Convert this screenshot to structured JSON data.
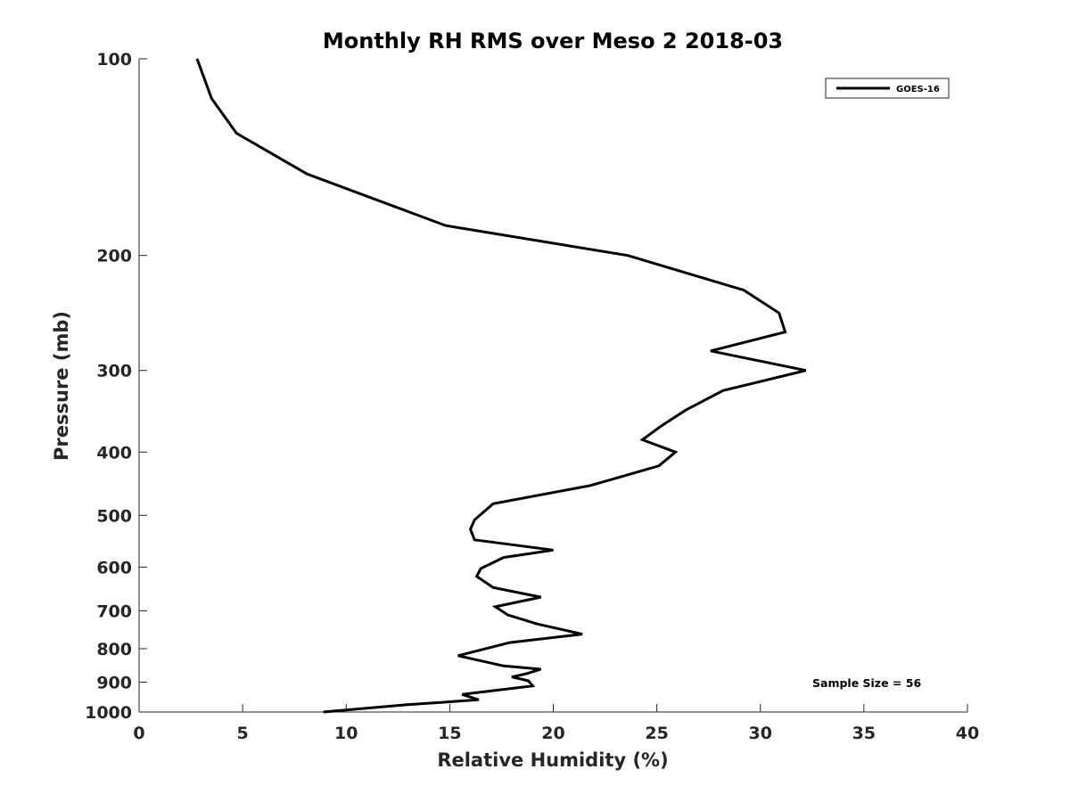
{
  "chart_data": {
    "type": "line",
    "title": "Monthly RH RMS over Meso 2  2018-03",
    "xlabel": "Relative Humidity (%)",
    "ylabel": "Pressure (mb)",
    "xlim": [
      0,
      40
    ],
    "ylim": [
      100,
      1000
    ],
    "y_scale": "log",
    "y_reversed": true,
    "xticks": [
      0,
      5,
      10,
      15,
      20,
      25,
      30,
      35,
      40
    ],
    "xtick_labels": [
      "0",
      "5",
      "10",
      "15",
      "20",
      "25",
      "30",
      "35",
      "40"
    ],
    "yticks": [
      100,
      200,
      300,
      400,
      500,
      600,
      700,
      800,
      900,
      1000
    ],
    "ytick_labels": [
      "100",
      "200",
      "300",
      "400",
      "500",
      "600",
      "700",
      "800",
      "900",
      "1000"
    ],
    "grid": false,
    "legend_position": "top-right",
    "annotation": "Sample Size = 56",
    "series": [
      {
        "name": "GOES-16",
        "color": "#000000",
        "x": [
          2.8,
          3.5,
          4.7,
          8.1,
          14.8,
          23.6,
          29.2,
          30.9,
          31.2,
          27.6,
          32.2,
          28.2,
          26.4,
          25.2,
          24.3,
          25.9,
          25.1,
          21.8,
          17.1,
          16.2,
          16.0,
          16.2,
          20.0,
          17.6,
          16.5,
          16.3,
          17.1,
          19.4,
          17.2,
          17.8,
          19.2,
          21.4,
          17.9,
          15.4,
          17.6,
          19.4,
          18.7,
          18.0,
          18.8,
          19.0,
          15.6,
          16.4,
          12.9,
          8.9
        ],
        "y": [
          100,
          115,
          130,
          150,
          180,
          200,
          226,
          245,
          262,
          280,
          300,
          322,
          345,
          365,
          383,
          400,
          420,
          450,
          480,
          508,
          525,
          545,
          565,
          580,
          603,
          620,
          645,
          667,
          690,
          710,
          733,
          760,
          783,
          820,
          850,
          860,
          874,
          884,
          896,
          912,
          940,
          958,
          975,
          1000
        ]
      }
    ]
  }
}
